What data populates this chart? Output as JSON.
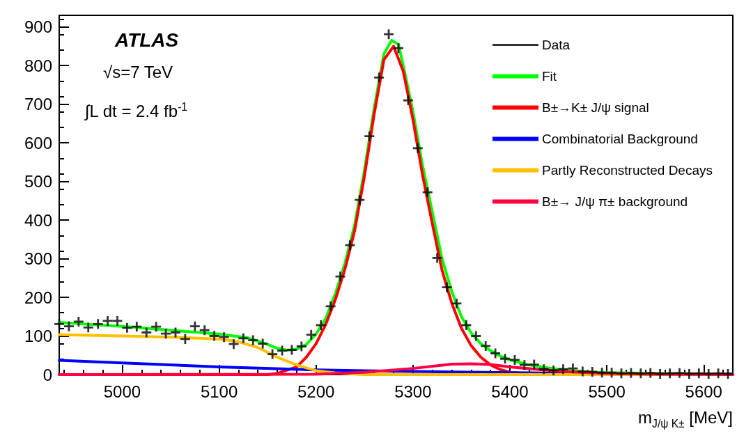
{
  "chart_data": {
    "type": "scatter",
    "xlabel": "m$_{J/ψ K±}$ [MeV]",
    "annotations": [
      "ATLAS",
      "√s=7 TeV",
      "∫L dt = 2.4 fb$^{-1}$"
    ],
    "xlim": [
      4935,
      5630
    ],
    "xticks": [
      5000,
      5100,
      5200,
      5300,
      5400,
      5500,
      5600
    ],
    "ylim": [
      0,
      930
    ],
    "yticks": [
      0,
      100,
      200,
      300,
      400,
      500,
      600,
      700,
      800,
      900
    ],
    "grid": false,
    "legend": "top right",
    "series": [
      {
        "name": "Data",
        "marker": "cross",
        "color": "#000000",
        "x": [
          4935,
          4945,
          4955,
          4965,
          4975,
          4985,
          4995,
          5005,
          5015,
          5025,
          5035,
          5045,
          5055,
          5065,
          5075,
          5085,
          5095,
          5105,
          5115,
          5125,
          5135,
          5145,
          5155,
          5165,
          5175,
          5185,
          5195,
          5205,
          5215,
          5225,
          5235,
          5245,
          5255,
          5265,
          5275,
          5285,
          5295,
          5305,
          5315,
          5325,
          5335,
          5345,
          5355,
          5365,
          5375,
          5385,
          5395,
          5405,
          5415,
          5425,
          5435,
          5445,
          5455,
          5465,
          5475,
          5485,
          5495,
          5505,
          5515,
          5525,
          5535,
          5545,
          5555,
          5565,
          5575,
          5585,
          5595,
          5605,
          5615,
          5625
        ],
        "values": [
          131,
          125,
          137,
          122,
          131,
          139,
          139,
          121,
          124,
          109,
          124,
          106,
          109,
          92,
          125,
          115,
          100,
          97,
          79,
          94,
          89,
          80,
          53,
          62,
          64,
          73,
          103,
          128,
          177,
          254,
          335,
          452,
          617,
          769,
          881,
          845,
          710,
          586,
          472,
          302,
          226,
          184,
          128,
          100,
          74,
          55,
          41,
          38,
          25,
          26,
          14,
          11,
          14,
          16,
          8,
          7,
          5,
          5,
          3,
          4,
          3,
          4,
          2,
          3,
          4,
          2,
          3,
          2,
          3,
          2
        ]
      },
      {
        "name": "Fit",
        "type": "line",
        "marker": "none",
        "color": "#00ff00",
        "x": [
          4935,
          4965,
          5000,
          5050,
          5100,
          5130,
          5150,
          5160,
          5170,
          5180,
          5190,
          5200,
          5210,
          5220,
          5230,
          5240,
          5250,
          5260,
          5270,
          5278,
          5285,
          5290,
          5300,
          5310,
          5320,
          5330,
          5340,
          5350,
          5360,
          5370,
          5380,
          5390,
          5400,
          5420,
          5440,
          5460,
          5480,
          5500,
          5550,
          5630
        ],
        "values": [
          135,
          130,
          125,
          115,
          105,
          95,
          78,
          68,
          63,
          66,
          78,
          105,
          145,
          210,
          290,
          390,
          530,
          690,
          830,
          865,
          855,
          800,
          680,
          540,
          420,
          300,
          215,
          150,
          108,
          80,
          62,
          48,
          38,
          25,
          17,
          11,
          7,
          5,
          3,
          2
        ]
      },
      {
        "name": "B±→K± J/ψ signal",
        "type": "line",
        "marker": "none",
        "color": "#ff0000",
        "x": [
          4935,
          5150,
          5160,
          5180,
          5190,
          5200,
          5210,
          5220,
          5230,
          5240,
          5250,
          5260,
          5270,
          5280,
          5290,
          5300,
          5310,
          5320,
          5330,
          5340,
          5350,
          5360,
          5370,
          5380,
          5390,
          5400,
          5420,
          5450,
          5630
        ],
        "values": [
          0,
          0,
          3,
          20,
          45,
          80,
          130,
          195,
          275,
          375,
          515,
          675,
          815,
          850,
          785,
          660,
          515,
          390,
          270,
          185,
          120,
          75,
          45,
          25,
          13,
          6,
          2,
          0,
          0
        ]
      },
      {
        "name": "Combinatorial Background",
        "type": "line",
        "marker": "none",
        "color": "#0000ff",
        "x": [
          4935,
          5000,
          5100,
          5200,
          5300,
          5400,
          5500,
          5630
        ],
        "values": [
          37,
          30,
          20,
          12,
          8,
          5,
          2,
          1
        ]
      },
      {
        "name": "Partly Reconstructed Decays",
        "type": "line",
        "marker": "none",
        "color": "#ffc000",
        "x": [
          4935,
          5000,
          5050,
          5100,
          5120,
          5140,
          5160,
          5180,
          5200,
          5220,
          5250,
          5630
        ],
        "values": [
          103,
          100,
          97,
          92,
          85,
          70,
          45,
          25,
          10,
          4,
          0,
          0
        ]
      },
      {
        "name": "B±→ J/ψ π± background",
        "type": "line",
        "marker": "none",
        "color": "#ff0040",
        "x": [
          4935,
          5200,
          5250,
          5300,
          5340,
          5360,
          5380,
          5400,
          5430,
          5460,
          5500,
          5550,
          5630
        ],
        "values": [
          0,
          1,
          6,
          16,
          27,
          28,
          26,
          20,
          13,
          7,
          3,
          1,
          0
        ]
      }
    ]
  }
}
